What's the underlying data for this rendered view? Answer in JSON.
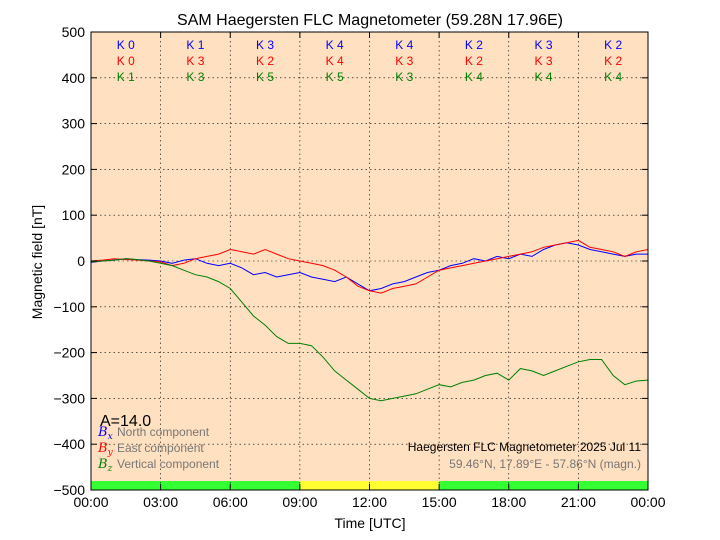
{
  "chart_data": {
    "type": "line",
    "title": "SAM Haegersten FLC Magnetometer (59.28N 17.96E)",
    "xlabel": "Time [UTC]",
    "ylabel": "Magnetic field [nT]",
    "xlim": [
      0,
      24
    ],
    "ylim": [
      -500,
      500
    ],
    "x_ticks": [
      0,
      3,
      6,
      9,
      12,
      15,
      18,
      21,
      24
    ],
    "x_tick_labels": [
      "00:00",
      "03:00",
      "06:00",
      "09:00",
      "12:00",
      "15:00",
      "18:00",
      "21:00",
      "00:00"
    ],
    "y_ticks": [
      -500,
      -400,
      -300,
      -200,
      -100,
      0,
      100,
      200,
      300,
      400,
      500
    ],
    "y_tick_labels": [
      "−500",
      "−400",
      "−300",
      "−200",
      "−100",
      "0",
      "100",
      "200",
      "300",
      "400",
      "500"
    ],
    "grid": true,
    "background_color": "#ffe0c0",
    "k_index": {
      "rows": [
        {
          "component": "north",
          "color": "#0000ff",
          "labels": [
            "K 0",
            "K 1",
            "K 3",
            "K 4",
            "K 4",
            "K 2",
            "K 3",
            "K 2"
          ]
        },
        {
          "component": "east",
          "color": "#ff0000",
          "labels": [
            "K 0",
            "K 3",
            "K 2",
            "K 4",
            "K 3",
            "K 2",
            "K 3",
            "K 2"
          ]
        },
        {
          "component": "vertical",
          "color": "#008000",
          "labels": [
            "K 1",
            "K 3",
            "K 5",
            "K 5",
            "K 3",
            "K 4",
            "K 4",
            "K 4"
          ]
        }
      ]
    },
    "a_index": "A=14.0",
    "legend": {
      "placement": "bottom-left",
      "entries": [
        {
          "symbol": "B",
          "subscript": "x",
          "label": "North component",
          "color": "#0000ff"
        },
        {
          "symbol": "B",
          "subscript": "y",
          "label": "East component",
          "color": "#ff0000"
        },
        {
          "symbol": "B",
          "subscript": "z",
          "label": "Vertical component",
          "color": "#008000"
        }
      ]
    },
    "station_info": {
      "line1": "Haegersten FLC Magnetometer 2025 Jul 11",
      "line2": "59.46°N, 17.89°E - 57.86°N (magn.)"
    },
    "activity_bar": [
      {
        "from": 0,
        "to": 9,
        "color": "#33ff33"
      },
      {
        "from": 9,
        "to": 15,
        "color": "#ffff33"
      },
      {
        "from": 15,
        "to": 24,
        "color": "#33ff33"
      }
    ],
    "series": [
      {
        "name": "North component",
        "color": "#0000ff",
        "x": [
          0,
          0.5,
          1,
          1.5,
          2,
          2.5,
          3,
          3.5,
          4,
          4.5,
          5,
          5.5,
          6,
          6.5,
          7,
          7.5,
          8,
          8.5,
          9,
          9.5,
          10,
          10.5,
          11,
          11.5,
          12,
          12.5,
          13,
          13.5,
          14,
          14.5,
          15,
          15.5,
          16,
          16.5,
          17,
          17.5,
          18,
          18.5,
          19,
          19.5,
          20,
          20.5,
          21,
          21.5,
          22,
          22.5,
          23,
          23.5,
          24
        ],
        "y": [
          -3,
          0,
          2,
          5,
          3,
          2,
          0,
          -5,
          2,
          5,
          -5,
          -10,
          -5,
          -15,
          -30,
          -25,
          -35,
          -30,
          -25,
          -35,
          -40,
          -45,
          -35,
          -50,
          -65,
          -60,
          -50,
          -45,
          -35,
          -25,
          -20,
          -10,
          -5,
          5,
          0,
          10,
          5,
          15,
          10,
          25,
          35,
          40,
          35,
          25,
          20,
          15,
          10,
          15,
          15
        ]
      },
      {
        "name": "East component",
        "color": "#ff0000",
        "x": [
          0,
          0.5,
          1,
          1.5,
          2,
          2.5,
          3,
          3.5,
          4,
          4.5,
          5,
          5.5,
          6,
          6.5,
          7,
          7.5,
          8,
          8.5,
          9,
          9.5,
          10,
          10.5,
          11,
          11.5,
          12,
          12.5,
          13,
          13.5,
          14,
          14.5,
          15,
          15.5,
          16,
          16.5,
          17,
          17.5,
          18,
          18.5,
          19,
          19.5,
          20,
          20.5,
          21,
          21.5,
          22,
          22.5,
          23,
          23.5,
          24
        ],
        "y": [
          0,
          2,
          5,
          3,
          2,
          0,
          -2,
          -10,
          -5,
          5,
          10,
          15,
          25,
          20,
          15,
          25,
          15,
          5,
          0,
          -5,
          -10,
          -20,
          -35,
          -55,
          -65,
          -70,
          -60,
          -55,
          -50,
          -35,
          -20,
          -15,
          -10,
          -5,
          0,
          5,
          10,
          15,
          20,
          30,
          35,
          40,
          45,
          30,
          25,
          20,
          10,
          20,
          25
        ]
      },
      {
        "name": "Vertical component",
        "color": "#008000",
        "x": [
          0,
          0.5,
          1,
          1.5,
          2,
          2.5,
          3,
          3.5,
          4,
          4.5,
          5,
          5.5,
          6,
          6.5,
          7,
          7.5,
          8,
          8.5,
          9,
          9.5,
          10,
          10.5,
          11,
          11.5,
          12,
          12.5,
          13,
          13.5,
          14,
          14.5,
          15,
          15.5,
          16,
          16.5,
          17,
          17.5,
          18,
          18.5,
          19,
          19.5,
          20,
          20.5,
          21,
          21.5,
          22,
          22.5,
          23,
          23.5,
          24
        ],
        "y": [
          -2,
          0,
          2,
          5,
          3,
          0,
          -5,
          -10,
          -20,
          -30,
          -35,
          -45,
          -60,
          -90,
          -120,
          -140,
          -165,
          -180,
          -180,
          -185,
          -210,
          -240,
          -260,
          -280,
          -300,
          -305,
          -300,
          -295,
          -290,
          -280,
          -270,
          -275,
          -265,
          -260,
          -250,
          -245,
          -260,
          -235,
          -240,
          -250,
          -240,
          -230,
          -220,
          -215,
          -215,
          -250,
          -270,
          -262,
          -260
        ]
      }
    ]
  }
}
